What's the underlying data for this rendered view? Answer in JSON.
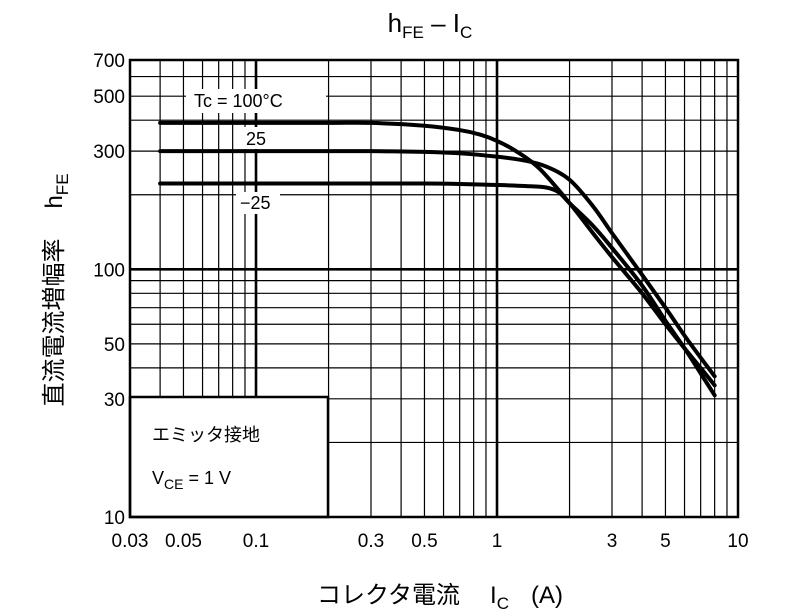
{
  "chart_data": {
    "type": "line",
    "title": "hFE – IC",
    "title_parts": {
      "main_h": "h",
      "main_sub": "FE",
      "dash": " – ",
      "i": "I",
      "i_sub": "C"
    },
    "xlabel": "コレクタ電流",
    "xlabel_symbol": {
      "main": "I",
      "sub": "C",
      "unit": "(A)"
    },
    "ylabel": "直流電流増幅率",
    "ylabel_symbol": {
      "main": "h",
      "sub": "FE"
    },
    "x_scale": "log",
    "y_scale": "log",
    "xlim": [
      0.03,
      10
    ],
    "ylim": [
      10,
      700
    ],
    "grid": true,
    "x_tick_values": [
      0.03,
      0.05,
      0.1,
      0.3,
      0.5,
      1,
      3,
      5,
      10
    ],
    "x_tick_labels": [
      "0.03",
      "0.05",
      "0.1",
      "0.3",
      "0.5",
      "1",
      "3",
      "5",
      "10"
    ],
    "y_tick_values": [
      10,
      30,
      50,
      100,
      300,
      500,
      700
    ],
    "y_tick_labels": [
      "10",
      "30",
      "50",
      "100",
      "300",
      "500",
      "700"
    ],
    "series": [
      {
        "name": "Tc = 100°C",
        "x": [
          0.04,
          0.1,
          0.2,
          0.3,
          0.5,
          0.7,
          0.85,
          1.0,
          1.2,
          1.5,
          2.0,
          2.5,
          3.0,
          4.0,
          5.0,
          6.0,
          7.0,
          8.0
        ],
        "y": [
          390,
          390,
          390,
          390,
          380,
          365,
          350,
          330,
          300,
          255,
          185,
          140,
          112,
          80,
          60,
          48,
          40,
          34
        ]
      },
      {
        "name": "25",
        "x": [
          0.04,
          0.1,
          0.2,
          0.3,
          0.5,
          0.7,
          1.0,
          1.3,
          1.6,
          2.0,
          2.5,
          3.0,
          4.0,
          5.0,
          6.0,
          7.0,
          8.0
        ],
        "y": [
          300,
          300,
          300,
          300,
          298,
          294,
          285,
          275,
          260,
          230,
          180,
          140,
          95,
          70,
          54,
          44,
          37
        ]
      },
      {
        "name": "−25",
        "x": [
          0.04,
          0.1,
          0.2,
          0.3,
          0.5,
          0.7,
          1.0,
          1.3,
          1.6,
          1.8,
          2.0,
          2.5,
          3.0,
          4.0,
          5.0,
          6.0,
          7.0,
          8.0
        ],
        "y": [
          222,
          222,
          222,
          222,
          222,
          221,
          219,
          217,
          214,
          205,
          185,
          150,
          122,
          86,
          62,
          48,
          38,
          31
        ]
      }
    ],
    "annotation_box": {
      "line1": "エミッタ接地",
      "line2_main": "V",
      "line2_sub": "CE",
      "line2_rest": " = 1 V"
    },
    "colors": {
      "line": "#000000",
      "background": "#ffffff"
    }
  }
}
